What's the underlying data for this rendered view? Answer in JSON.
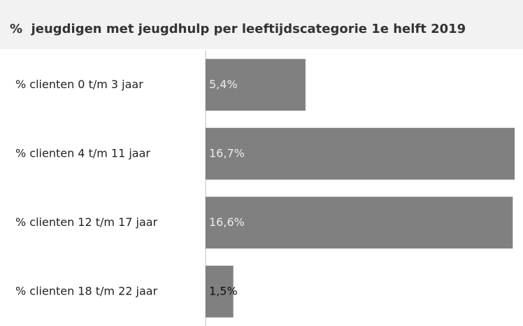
{
  "chart_data": {
    "type": "bar",
    "orientation": "horizontal",
    "title": "%  jeugdigen met jeugdhulp per leeftijdscategorie 1e helft 2019",
    "categories": [
      "% clienten 0 t/m 3 jaar",
      "% clienten 4 t/m 11 jaar",
      "% clienten 12 t/m 17 jaar",
      "% clienten 18 t/m 22 jaar"
    ],
    "values": [
      5.4,
      16.7,
      16.6,
      1.5
    ],
    "value_labels": [
      "5,4%",
      "16,7%",
      "16,6%",
      "1,5%"
    ],
    "color": "#808080"
  }
}
